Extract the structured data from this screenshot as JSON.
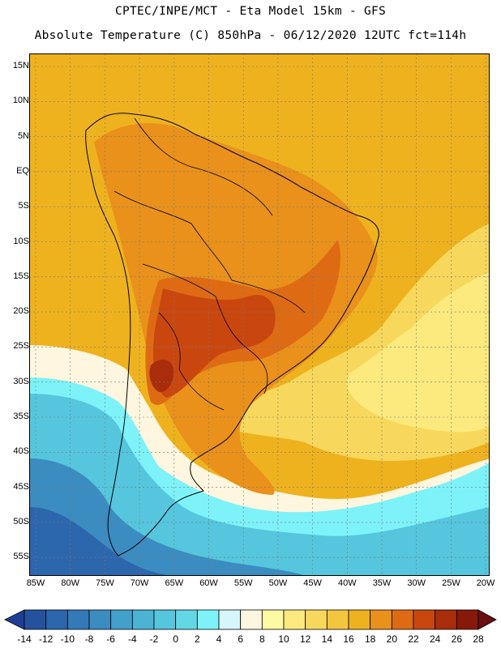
{
  "header": {
    "line1": "CPTEC/INPE/MCT -  Eta Model 15km - GFS",
    "line2": "Absolute Temperature (C) 850hPa - 06/12/2020 12UTC fct=114h"
  },
  "axes": {
    "lat_labels": [
      "15N",
      "10N",
      "5N",
      "EQ",
      "5S",
      "10S",
      "15S",
      "20S",
      "25S",
      "30S",
      "35S",
      "40S",
      "45S",
      "50S",
      "55S"
    ],
    "lon_labels": [
      "85W",
      "80W",
      "75W",
      "70W",
      "65W",
      "60W",
      "55W",
      "50W",
      "45W",
      "40W",
      "35W",
      "30W",
      "25W",
      "20W"
    ]
  },
  "colorbar": {
    "labels": [
      "-14",
      "-12",
      "-10",
      "-8",
      "-6",
      "-4",
      "-2",
      "0",
      "2",
      "4",
      "6",
      "8",
      "10",
      "12",
      "14",
      "16",
      "18",
      "20",
      "22",
      "24",
      "26",
      "28"
    ],
    "colors": [
      "#1e3f94",
      "#24529f",
      "#2c66ad",
      "#3479b8",
      "#3b8cc1",
      "#43a0ca",
      "#4bb3d3",
      "#55c6de",
      "#62d8e6",
      "#7df3f9",
      "#d6f6fb",
      "#fff6df",
      "#fef9a3",
      "#fcea7e",
      "#f8d85c",
      "#f3c63d",
      "#efb21f",
      "#e9911a",
      "#de6b14",
      "#c9470f",
      "#a92c0b",
      "#86190a",
      "#6b0f12"
    ]
  },
  "map": {
    "zones": [
      {
        "name": "sea-tropical",
        "color": "#efb21f"
      },
      {
        "name": "continent-interior",
        "color": "#e9911a"
      },
      {
        "name": "hot-core",
        "color": "#de6b14"
      },
      {
        "name": "hottest-core",
        "color": "#c9470f"
      },
      {
        "name": "extreme-core",
        "color": "#a92c0b"
      },
      {
        "name": "atlantic-mid",
        "color": "#f8d85c"
      },
      {
        "name": "atlantic-light",
        "color": "#fcea7e"
      },
      {
        "name": "cool-band",
        "color": "#fff6df"
      },
      {
        "name": "cold-band",
        "color": "#7df3f9"
      },
      {
        "name": "colder-band",
        "color": "#55c6de"
      },
      {
        "name": "coldest-band",
        "color": "#3b8cc1"
      },
      {
        "name": "polar-band",
        "color": "#2c66ad"
      }
    ]
  }
}
